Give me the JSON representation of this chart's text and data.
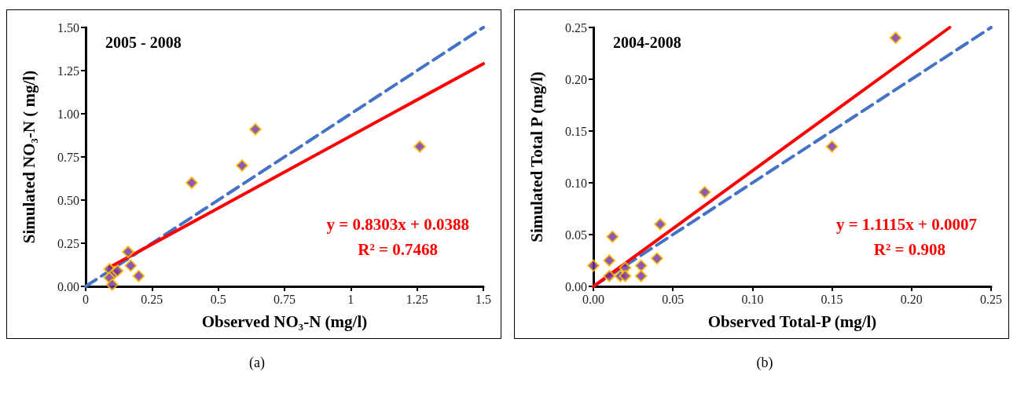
{
  "chart_data": [
    {
      "type": "scatter",
      "title": "2005 - 2008",
      "xlabel": "Observed NO₃-N (mg/l)",
      "ylabel": "Simulated NO₃-N ( mg/l)",
      "xlim": [
        0,
        1.5
      ],
      "xticks": [
        0,
        0.25,
        0.5,
        0.75,
        1,
        1.25,
        1.5
      ],
      "ylim": [
        0,
        1.5
      ],
      "yticks": [
        {
          "value": 0,
          "label": "0.00"
        },
        {
          "value": 0.25,
          "label": "0.25"
        },
        {
          "value": 0.5,
          "label": "0.50"
        },
        {
          "value": 0.75,
          "label": "0.75"
        },
        {
          "value": 1,
          "label": "1.00"
        },
        {
          "value": 1.25,
          "label": "1.25"
        },
        {
          "value": 1.5,
          "label": "1.50"
        }
      ],
      "grid": false,
      "series": [
        {
          "marker": "diamond",
          "color": "#7030a0",
          "x": [
            0.09,
            0.09,
            0.1,
            0.11,
            0.12,
            0.16,
            0.17,
            0.2,
            0.4,
            0.59,
            0.64,
            1.26
          ],
          "values": [
            0.1,
            0.05,
            0.01,
            0.08,
            0.09,
            0.2,
            0.12,
            0.06,
            0.6,
            0.7,
            0.91,
            0.81
          ]
        },
        {
          "type": "line",
          "marker": "none",
          "color": "#ff0000",
          "line_style": "solid",
          "x": [
            0.09,
            1.5
          ],
          "values": [
            0.11,
            1.29
          ]
        },
        {
          "type": "line",
          "marker": "none",
          "color": "#4472c4",
          "line_style": "dashed",
          "x": [
            0,
            1.5
          ],
          "values": [
            0,
            1.5
          ]
        }
      ],
      "annotations": [
        "y = 0.8303x + 0.0388",
        "R² = 0.7468",
        "(a)"
      ]
    },
    {
      "type": "scatter",
      "title": "2004-2008",
      "xlabel": "Observed Total-P (mg/l)",
      "ylabel": "Simulated Total P (mg/l)",
      "xlim": [
        0,
        0.25
      ],
      "xticks": [
        {
          "value": 0,
          "label": "0.00"
        },
        {
          "value": 0.05,
          "label": "0.05"
        },
        {
          "value": 0.1,
          "label": "0.10"
        },
        {
          "value": 0.15,
          "label": "0.15"
        },
        {
          "value": 0.2,
          "label": "0.20"
        },
        {
          "value": 0.25,
          "label": "0.25"
        }
      ],
      "ylim": [
        0,
        0.25
      ],
      "yticks": [
        {
          "value": 0,
          "label": "0.00"
        },
        {
          "value": 0.05,
          "label": "0.05"
        },
        {
          "value": 0.1,
          "label": "0.10"
        },
        {
          "value": 0.15,
          "label": "0.15"
        },
        {
          "value": 0.2,
          "label": "0.20"
        },
        {
          "value": 0.25,
          "label": "0.25"
        }
      ],
      "grid": false,
      "series": [
        {
          "marker": "diamond",
          "color": "#7030a0",
          "x": [
            0,
            0.01,
            0.01,
            0.012,
            0.017,
            0.02,
            0.02,
            0.03,
            0.03,
            0.04,
            0.042,
            0.07,
            0.15,
            0.19
          ],
          "values": [
            0.02,
            0.025,
            0.01,
            0.048,
            0.01,
            0.018,
            0.01,
            0.02,
            0.01,
            0.027,
            0.06,
            0.091,
            0.135,
            0.24
          ]
        },
        {
          "type": "line",
          "marker": "none",
          "color": "#ff0000",
          "line_style": "solid",
          "x": [
            0,
            0.224
          ],
          "values": [
            0,
            0.25
          ]
        },
        {
          "type": "line",
          "marker": "none",
          "color": "#4472c4",
          "line_style": "dashed",
          "x": [
            0,
            0.25
          ],
          "values": [
            0,
            0.25
          ]
        }
      ],
      "annotations": [
        "y = 1.1115x + 0.0007",
        "R² = 0.908",
        "(b)"
      ]
    }
  ]
}
